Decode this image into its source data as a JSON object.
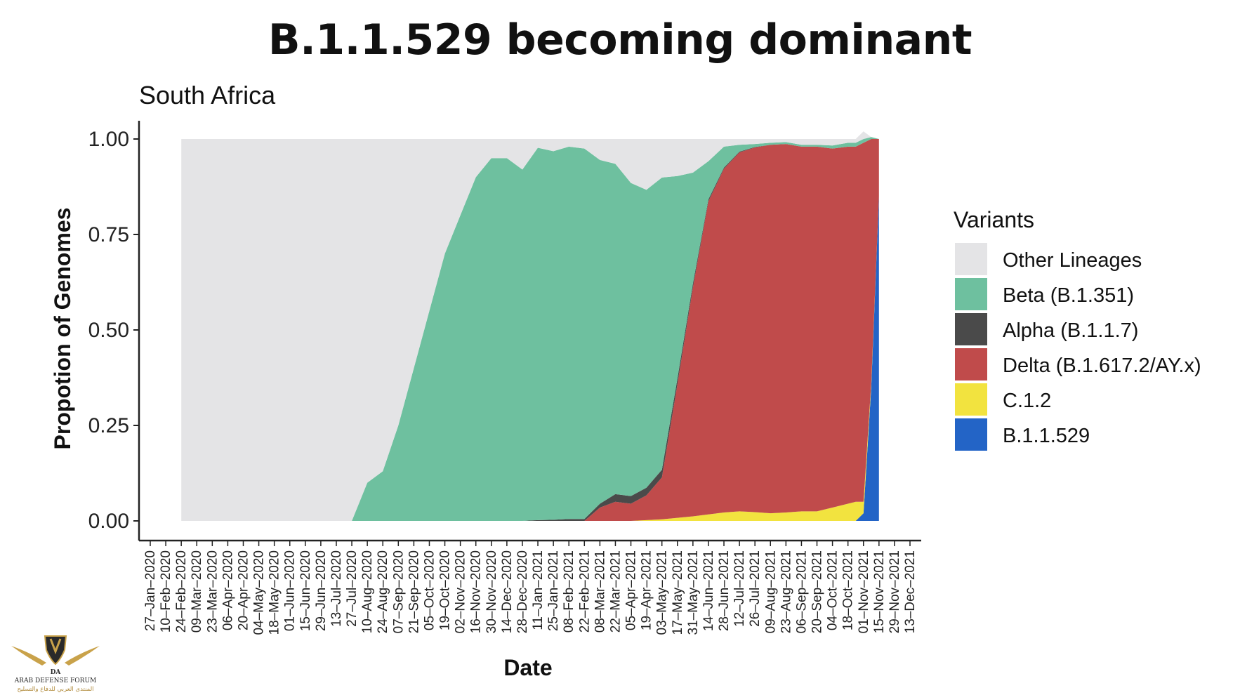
{
  "slide": {
    "title": "B.1.1.529 becoming dominant"
  },
  "logo": {
    "text_en": "ARAB DEFENSE FORUM",
    "text_ar": "المنتدى العربي للدفاع والتسليح",
    "mark": "DA"
  },
  "chart_data": {
    "type": "area",
    "stacked": true,
    "title": "South Africa",
    "xlabel": "Date",
    "ylabel": "Propotion of Genomes",
    "ylim": [
      0,
      1
    ],
    "yticks": [
      "0.00",
      "0.25",
      "0.50",
      "0.75",
      "1.00"
    ],
    "grid": false,
    "legend": {
      "title": "Variants",
      "position": "right"
    },
    "x_tick_labels": [
      "27–Jan–2020",
      "10–Feb–2020",
      "24–Feb–2020",
      "09–Mar–2020",
      "23–Mar–2020",
      "06–Apr–2020",
      "20–Apr–2020",
      "04–May–2020",
      "18–May–2020",
      "01–Jun–2020",
      "15–Jun–2020",
      "29–Jun–2020",
      "13–Jul–2020",
      "27–Jul–2020",
      "10–Aug–2020",
      "24–Aug–2020",
      "07–Sep–2020",
      "21–Sep–2020",
      "05–Oct–2020",
      "19–Oct–2020",
      "02–Nov–2020",
      "16–Nov–2020",
      "30–Nov–2020",
      "14–Dec–2020",
      "28–Dec–2020",
      "11–Jan–2021",
      "25–Jan–2021",
      "08–Feb–2021",
      "22–Feb–2021",
      "08–Mar–2021",
      "22–Mar–2021",
      "05–Apr–2021",
      "19–Apr–2021",
      "03–May–2021",
      "17–May–2021",
      "31–May–2021",
      "14–Jun–2021",
      "28–Jun–2021",
      "12–Jul–2021",
      "26–Jul–2021",
      "09–Aug–2021",
      "23–Aug–2021",
      "06–Sep–2021",
      "20–Sep–2021",
      "04–Oct–2021",
      "18–Oct–2021",
      "01–Nov–2021",
      "15–Nov–2021",
      "29–Nov–2021",
      "13–Dec–2021"
    ],
    "x_range": [
      "27–Jan–2020",
      "13–Dec–2021"
    ],
    "x_dates": [
      "24–Feb–2020",
      "27–Jul–2020",
      "10–Aug–2020",
      "24–Aug–2020",
      "07–Sep–2020",
      "21–Sep–2020",
      "05–Oct–2020",
      "19–Oct–2020",
      "02–Nov–2020",
      "16–Nov–2020",
      "30–Nov–2020",
      "14–Dec–2020",
      "28–Dec–2020",
      "11–Jan–2021",
      "25–Jan–2021",
      "08–Feb–2021",
      "22–Feb–2021",
      "08–Mar–2021",
      "22–Mar–2021",
      "05–Apr–2021",
      "19–Apr–2021",
      "03–May–2021",
      "17–May–2021",
      "31–May–2021",
      "14–Jun–2021",
      "28–Jun–2021",
      "12–Jul–2021",
      "26–Jul–2021",
      "09–Aug–2021",
      "23–Aug–2021",
      "06–Sep–2021",
      "20–Sep–2021",
      "04–Oct–2021",
      "18–Oct–2021",
      "25–Oct–2021",
      "01–Nov–2021",
      "08–Nov–2021",
      "15–Nov–2021"
    ],
    "series": [
      {
        "name": "B.1.1.529",
        "color": "#2364c6",
        "values": [
          0,
          0,
          0,
          0,
          0,
          0,
          0,
          0,
          0,
          0,
          0,
          0,
          0,
          0,
          0,
          0,
          0,
          0,
          0,
          0,
          0,
          0,
          0,
          0,
          0,
          0,
          0,
          0,
          0,
          0,
          0,
          0,
          0,
          0,
          0,
          0.02,
          0.35,
          0.85
        ]
      },
      {
        "name": "C.1.2",
        "color": "#f2e33f",
        "values": [
          0,
          0,
          0,
          0,
          0,
          0,
          0,
          0,
          0,
          0,
          0,
          0,
          0,
          0,
          0,
          0,
          0,
          0,
          0,
          0,
          0.002,
          0.004,
          0.008,
          0.012,
          0.017,
          0.022,
          0.025,
          0.023,
          0.02,
          0.022,
          0.025,
          0.025,
          0.035,
          0.045,
          0.05,
          0.03,
          0.01,
          0
        ]
      },
      {
        "name": "Delta (B.1.617.2/AY.x)",
        "color": "#c04b4b",
        "values": [
          0,
          0,
          0,
          0,
          0,
          0,
          0,
          0,
          0,
          0,
          0,
          0,
          0,
          0,
          0,
          0,
          0,
          0.035,
          0.05,
          0.045,
          0.065,
          0.11,
          0.35,
          0.6,
          0.82,
          0.9,
          0.94,
          0.955,
          0.965,
          0.965,
          0.955,
          0.955,
          0.94,
          0.935,
          0.93,
          0.94,
          0.64,
          0.15
        ]
      },
      {
        "name": "Alpha (B.1.1.7)",
        "color": "#4a4a4a",
        "values": [
          0,
          0,
          0,
          0,
          0,
          0,
          0,
          0,
          0,
          0,
          0,
          0,
          0,
          0.002,
          0.003,
          0.005,
          0.005,
          0.01,
          0.02,
          0.02,
          0.02,
          0.02,
          0.015,
          0.01,
          0.005,
          0.003,
          0.002,
          0.001,
          0,
          0,
          0,
          0,
          0,
          0,
          0,
          0,
          0,
          0
        ]
      },
      {
        "name": "Beta (B.1.351)",
        "color": "#6ec09f",
        "values": [
          0,
          0,
          0.1,
          0.13,
          0.25,
          0.4,
          0.55,
          0.7,
          0.8,
          0.9,
          0.95,
          0.95,
          0.92,
          0.975,
          0.965,
          0.975,
          0.97,
          0.9,
          0.865,
          0.82,
          0.78,
          0.765,
          0.53,
          0.29,
          0.1,
          0.055,
          0.018,
          0.008,
          0.005,
          0.005,
          0.005,
          0.005,
          0.008,
          0.01,
          0.01,
          0.01,
          0.005,
          0
        ]
      },
      {
        "name": "Other Lineages",
        "color": "#e4e4e6",
        "values": [
          1,
          1,
          0.9,
          0.87,
          0.75,
          0.6,
          0.45,
          0.3,
          0.2,
          0.1,
          0.05,
          0.05,
          0.08,
          0.023,
          0.032,
          0.02,
          0.025,
          0.055,
          0.065,
          0.115,
          0.133,
          0.101,
          0.097,
          0.088,
          0.058,
          0.02,
          0.015,
          0.013,
          0.01,
          0.008,
          0.015,
          0.015,
          0.017,
          0.01,
          0.01,
          0.02,
          0,
          0
        ]
      }
    ],
    "legend_order": [
      "Other Lineages",
      "Beta (B.1.351)",
      "Alpha (B.1.1.7)",
      "Delta (B.1.617.2/AY.x)",
      "C.1.2",
      "B.1.1.529"
    ]
  }
}
